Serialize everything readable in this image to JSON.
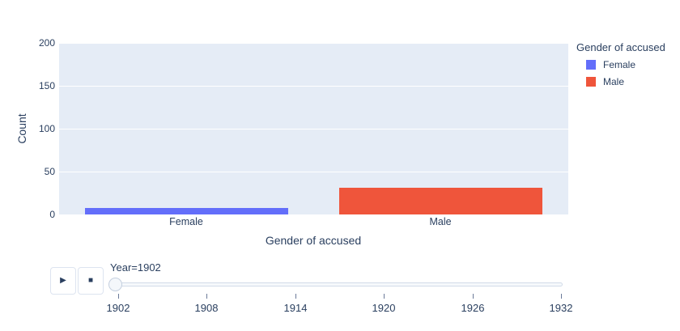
{
  "chart_data": {
    "type": "bar",
    "title": "",
    "categories": [
      "Female",
      "Male"
    ],
    "values": [
      8,
      31
    ],
    "series": [
      {
        "name": "Female",
        "values": [
          8
        ],
        "color": "#636EFA"
      },
      {
        "name": "Male",
        "values": [
          31
        ],
        "color": "#EF553B"
      }
    ],
    "xlabel": "Gender of accused",
    "ylabel": "Count",
    "ylim": [
      0,
      200
    ],
    "ytick_labels": [
      "0",
      "50",
      "100",
      "150",
      "200"
    ],
    "grid": true,
    "plot_bg_color": "#E5ECF6",
    "gridline_color": "#ffffff",
    "legend_position": "right",
    "legend_title": "Gender of accused",
    "legend": [
      {
        "label": "Female",
        "color": "#636EFA"
      },
      {
        "label": "Male",
        "color": "#EF553B"
      }
    ]
  },
  "controls": {
    "play_glyph": "▶",
    "stop_glyph": "■"
  },
  "slider": {
    "label": "Year=1902",
    "current_value": "1902",
    "ticks": [
      "1902",
      "1908",
      "1914",
      "1920",
      "1926",
      "1932"
    ]
  },
  "colors": {
    "text": "#2a3f5f",
    "accent_blue": "#636EFA",
    "accent_red": "#EF553B"
  }
}
